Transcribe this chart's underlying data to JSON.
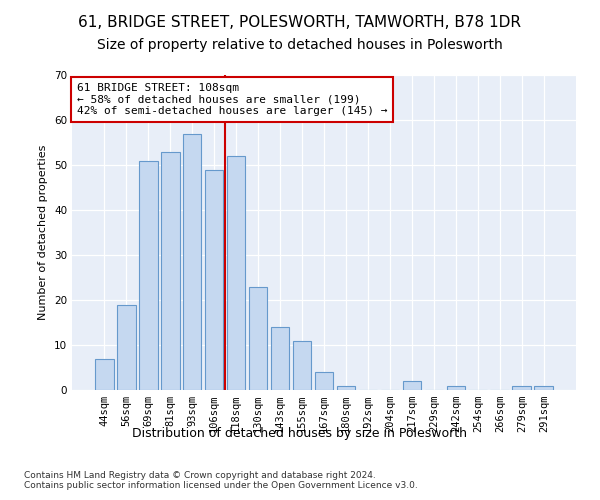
{
  "title1": "61, BRIDGE STREET, POLESWORTH, TAMWORTH, B78 1DR",
  "title2": "Size of property relative to detached houses in Polesworth",
  "xlabel": "Distribution of detached houses by size in Polesworth",
  "ylabel": "Number of detached properties",
  "categories": [
    "44sqm",
    "56sqm",
    "69sqm",
    "81sqm",
    "93sqm",
    "106sqm",
    "118sqm",
    "130sqm",
    "143sqm",
    "155sqm",
    "167sqm",
    "180sqm",
    "192sqm",
    "204sqm",
    "217sqm",
    "229sqm",
    "242sqm",
    "254sqm",
    "266sqm",
    "279sqm",
    "291sqm"
  ],
  "values": [
    7,
    19,
    51,
    53,
    57,
    49,
    52,
    23,
    14,
    11,
    4,
    1,
    0,
    0,
    2,
    0,
    1,
    0,
    0,
    1,
    1
  ],
  "bar_color": "#c5d8f0",
  "bar_edge_color": "#6699cc",
  "vline_x": 6.0,
  "vline_color": "#cc0000",
  "annotation_text": "61 BRIDGE STREET: 108sqm\n← 58% of detached houses are smaller (199)\n42% of semi-detached houses are larger (145) →",
  "annotation_box_color": "#ffffff",
  "annotation_box_edge": "#cc0000",
  "ylim": [
    0,
    70
  ],
  "yticks": [
    0,
    10,
    20,
    30,
    40,
    50,
    60,
    70
  ],
  "footnote": "Contains HM Land Registry data © Crown copyright and database right 2024.\nContains public sector information licensed under the Open Government Licence v3.0.",
  "bg_color": "#ffffff",
  "plot_bg_color": "#e8eef8",
  "grid_color": "#ffffff",
  "title1_fontsize": 11,
  "title2_fontsize": 10,
  "xlabel_fontsize": 9,
  "ylabel_fontsize": 8,
  "tick_fontsize": 7.5,
  "annotation_fontsize": 8,
  "footnote_fontsize": 6.5
}
